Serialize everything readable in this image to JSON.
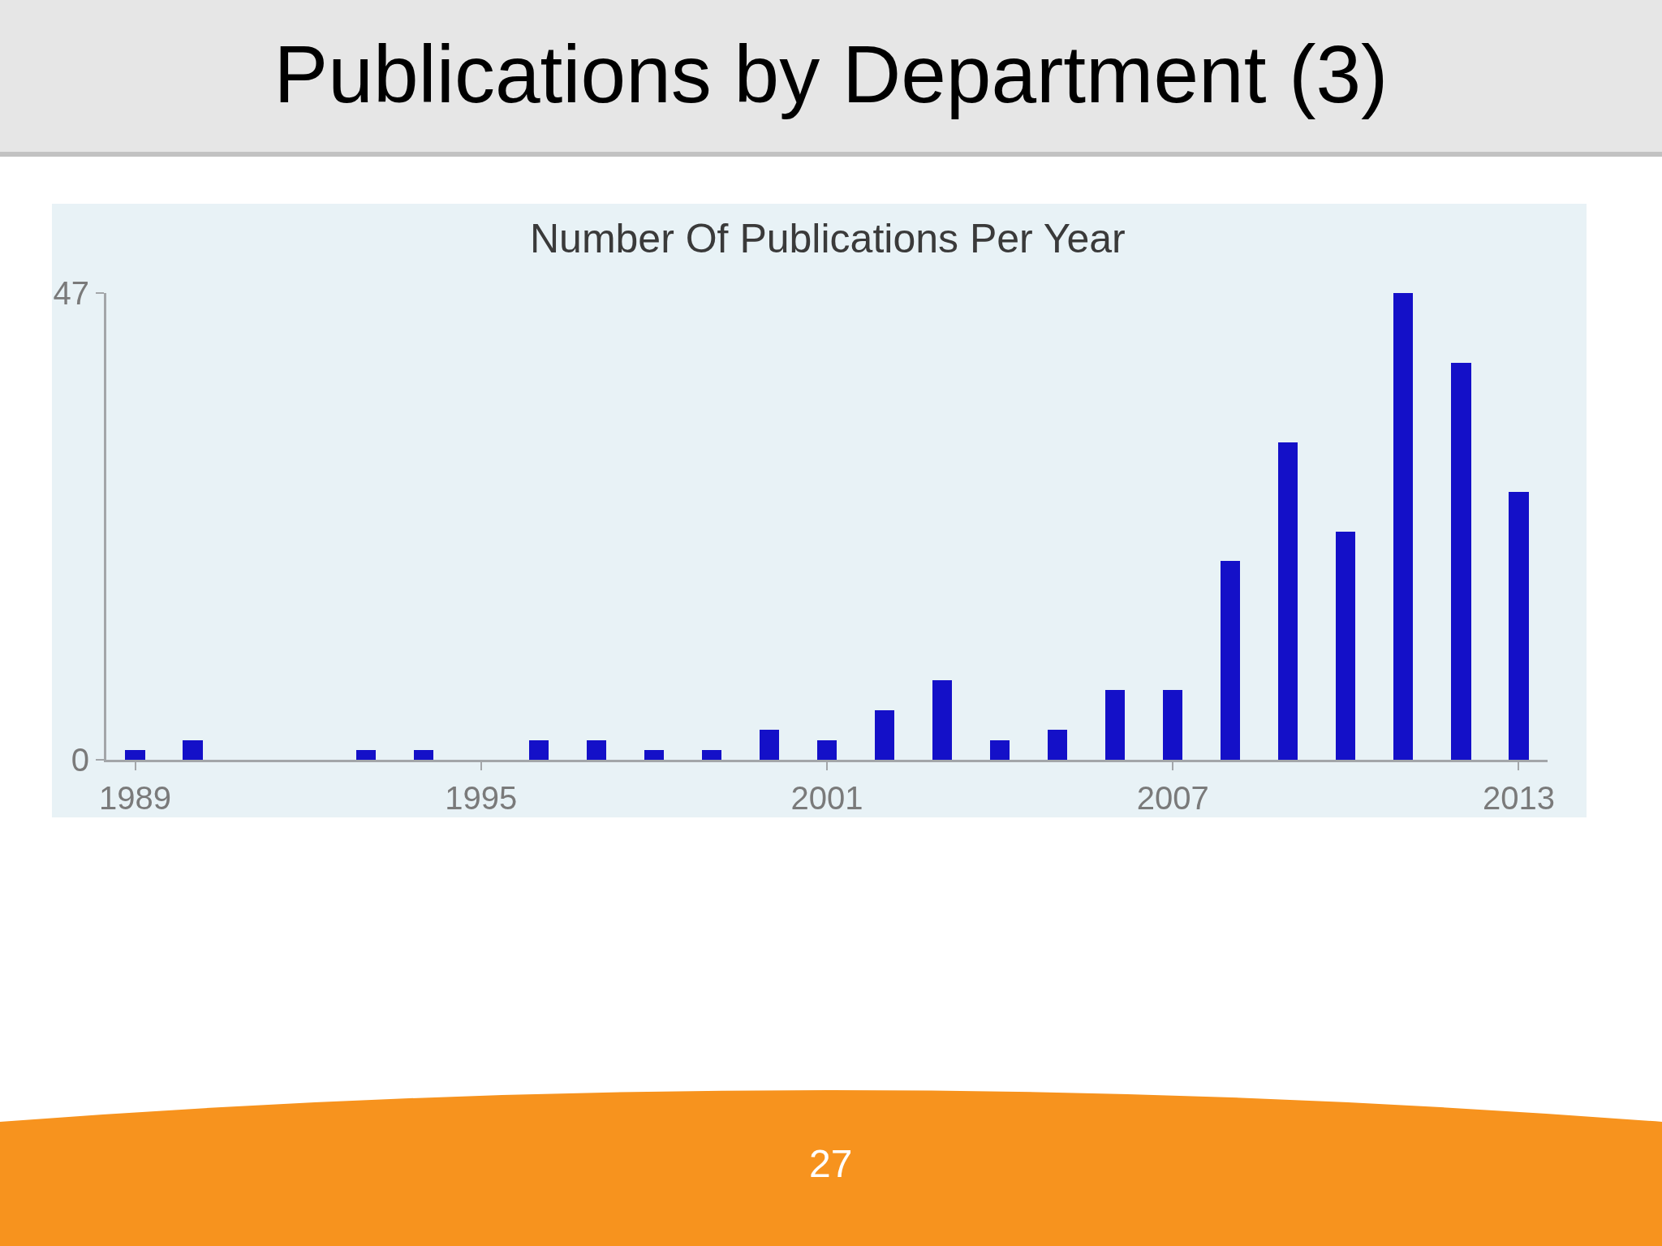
{
  "chart_data": {
    "type": "bar",
    "title": "Publications by Department (3)",
    "subtitle": "Number Of Publications Per Year",
    "annotations": [
      "27"
    ],
    "x": [
      1989,
      1990,
      1993,
      1994,
      1996,
      1997,
      1998,
      1999,
      2000,
      2001,
      2002,
      2003,
      2004,
      2005,
      2006,
      2007,
      2008,
      2009,
      2010,
      2011,
      2012,
      2013
    ],
    "values": [
      1,
      2,
      1,
      1,
      2,
      2,
      1,
      1,
      3,
      2,
      5,
      8,
      2,
      3,
      7,
      7,
      20,
      32,
      23,
      47,
      40,
      27
    ],
    "color": "#1410c8",
    "xlim": [
      1988.5,
      2013.5
    ],
    "xticks": [
      1989,
      1995,
      2001,
      2007,
      2013
    ],
    "ylim": [
      0,
      47
    ],
    "yticks": [
      0,
      47
    ]
  }
}
